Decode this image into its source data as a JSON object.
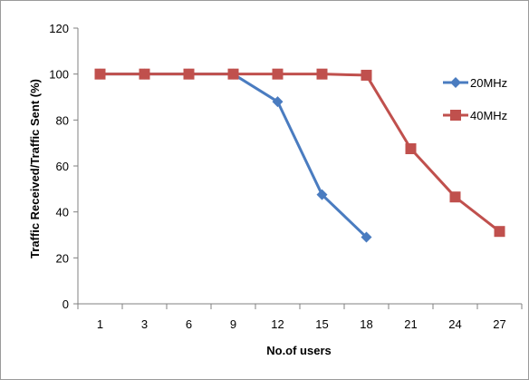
{
  "chart_data": {
    "type": "line",
    "categories": [
      "1",
      "3",
      "6",
      "9",
      "12",
      "15",
      "18",
      "21",
      "24",
      "27"
    ],
    "series": [
      {
        "name": "20MHz",
        "color": "#4a7cc0",
        "marker": "diamond",
        "values": [
          100,
          100,
          100,
          100,
          88,
          47.5,
          29,
          null,
          null,
          null
        ]
      },
      {
        "name": "40MHz",
        "color": "#c0504d",
        "marker": "square",
        "values": [
          100,
          100,
          100,
          100,
          100,
          100,
          99.5,
          67.5,
          46.5,
          31.5
        ]
      }
    ],
    "title": "",
    "xlabel": "No.of users",
    "ylabel": "Traffic Received/Traffic Sent (%)",
    "ylim": [
      0,
      120
    ],
    "yticks": [
      "0",
      "20",
      "40",
      "60",
      "80",
      "100",
      "120"
    ],
    "grid": false,
    "legend_position": "right"
  }
}
